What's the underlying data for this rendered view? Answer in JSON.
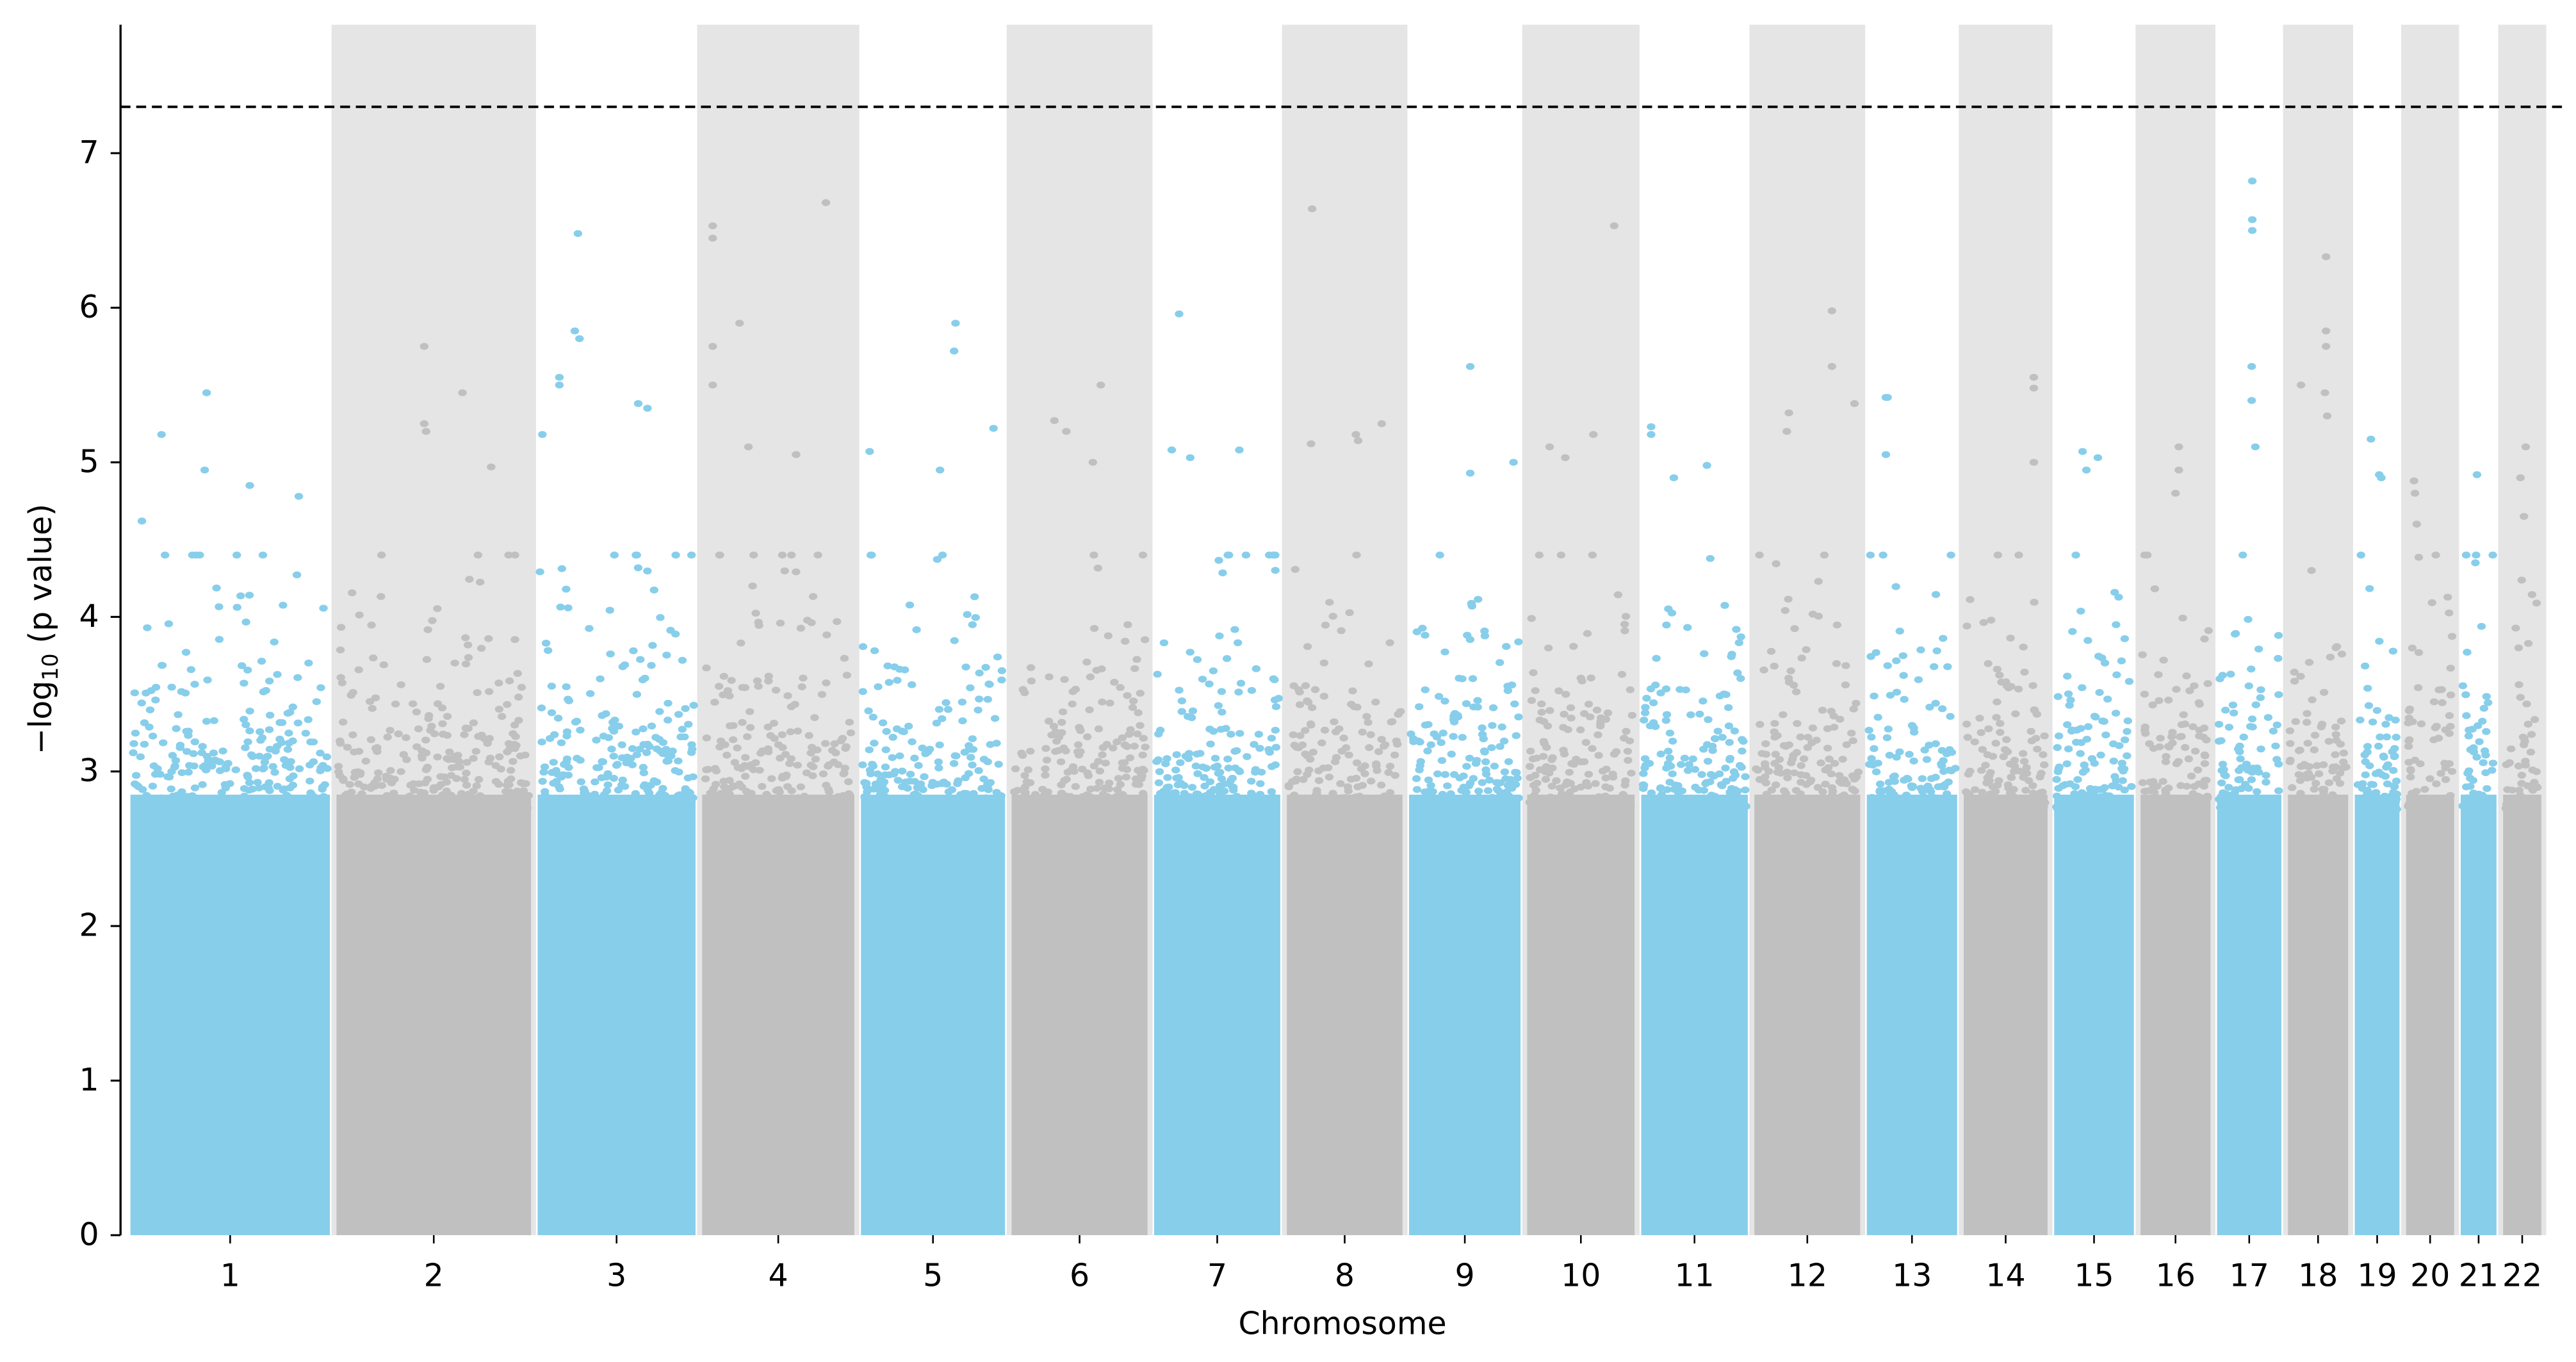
{
  "chart_data": {
    "type": "scatter",
    "subtype": "manhattan",
    "xlabel": "Chromosome",
    "ylabel": "−log10 (p value)",
    "ylim": [
      0,
      7.85
    ],
    "yticks": [
      0,
      1,
      2,
      3,
      4,
      5,
      6,
      7
    ],
    "threshold": 7.3,
    "colors": {
      "odd": "#87CEEB",
      "even": "#C0C0C0",
      "band": "#E5E5E5",
      "threshold": "#000000"
    },
    "chromosomes": [
      {
        "label": "1",
        "length_mb": 249,
        "top_hits": [
          [
            0.38,
            5.45
          ],
          [
            0.15,
            5.18
          ],
          [
            0.37,
            4.95
          ],
          [
            0.6,
            4.85
          ],
          [
            0.85,
            4.78
          ],
          [
            0.05,
            4.62
          ]
        ]
      },
      {
        "label": "2",
        "length_mb": 243,
        "top_hits": [
          [
            0.45,
            5.75
          ],
          [
            0.65,
            5.45
          ],
          [
            0.45,
            5.25
          ],
          [
            0.46,
            5.2
          ],
          [
            0.8,
            4.97
          ]
        ]
      },
      {
        "label": "3",
        "length_mb": 198,
        "top_hits": [
          [
            0.25,
            6.48
          ],
          [
            0.23,
            5.85
          ],
          [
            0.26,
            5.8
          ],
          [
            0.13,
            5.55
          ],
          [
            0.13,
            5.5
          ],
          [
            0.64,
            5.38
          ],
          [
            0.7,
            5.35
          ],
          [
            0.02,
            5.18
          ]
        ]
      },
      {
        "label": "4",
        "length_mb": 191,
        "top_hits": [
          [
            0.82,
            6.68
          ],
          [
            0.06,
            6.53
          ],
          [
            0.06,
            6.45
          ],
          [
            0.24,
            5.9
          ],
          [
            0.06,
            5.75
          ],
          [
            0.06,
            5.5
          ],
          [
            0.3,
            5.1
          ],
          [
            0.62,
            5.05
          ]
        ]
      },
      {
        "label": "5",
        "length_mb": 181,
        "top_hits": [
          [
            0.66,
            5.9
          ],
          [
            0.65,
            5.72
          ],
          [
            0.93,
            5.22
          ],
          [
            0.05,
            5.07
          ],
          [
            0.55,
            4.95
          ]
        ]
      },
      {
        "label": "6",
        "length_mb": 171,
        "top_hits": [
          [
            0.66,
            5.5
          ],
          [
            0.31,
            5.27
          ],
          [
            0.4,
            5.2
          ],
          [
            0.6,
            5.0
          ]
        ]
      },
      {
        "label": "7",
        "length_mb": 159,
        "top_hits": [
          [
            0.19,
            5.96
          ],
          [
            0.13,
            5.08
          ],
          [
            0.68,
            5.08
          ],
          [
            0.28,
            5.03
          ]
        ]
      },
      {
        "label": "8",
        "length_mb": 146,
        "top_hits": [
          [
            0.21,
            6.64
          ],
          [
            0.83,
            5.25
          ],
          [
            0.6,
            5.18
          ],
          [
            0.62,
            5.14
          ],
          [
            0.2,
            5.12
          ]
        ]
      },
      {
        "label": "9",
        "length_mb": 141,
        "top_hits": [
          [
            0.55,
            5.62
          ],
          [
            0.95,
            5.0
          ],
          [
            0.55,
            4.93
          ]
        ]
      },
      {
        "label": "10",
        "length_mb": 136,
        "top_hits": [
          [
            0.82,
            6.53
          ],
          [
            0.62,
            5.18
          ],
          [
            0.2,
            5.1
          ],
          [
            0.35,
            5.03
          ]
        ]
      },
      {
        "label": "11",
        "length_mb": 135,
        "top_hits": [
          [
            0.08,
            5.23
          ],
          [
            0.08,
            5.18
          ],
          [
            0.62,
            4.98
          ],
          [
            0.3,
            4.9
          ]
        ]
      },
      {
        "label": "12",
        "length_mb": 134,
        "top_hits": [
          [
            0.74,
            5.98
          ],
          [
            0.74,
            5.62
          ],
          [
            0.96,
            5.38
          ],
          [
            0.32,
            5.32
          ],
          [
            0.3,
            5.2
          ]
        ]
      },
      {
        "label": "13",
        "length_mb": 115,
        "top_hits": [
          [
            0.2,
            5.42
          ],
          [
            0.22,
            5.42
          ],
          [
            0.2,
            5.05
          ]
        ]
      },
      {
        "label": "14",
        "length_mb": 107,
        "top_hits": [
          [
            0.85,
            5.55
          ],
          [
            0.85,
            5.48
          ],
          [
            0.85,
            5.0
          ]
        ]
      },
      {
        "label": "15",
        "length_mb": 102,
        "top_hits": [
          [
            0.35,
            5.07
          ],
          [
            0.55,
            5.03
          ],
          [
            0.4,
            4.95
          ]
        ]
      },
      {
        "label": "16",
        "length_mb": 90,
        "top_hits": [
          [
            0.55,
            5.1
          ],
          [
            0.55,
            4.95
          ],
          [
            0.5,
            4.8
          ]
        ]
      },
      {
        "label": "17",
        "length_mb": 83,
        "top_hits": [
          [
            0.55,
            6.82
          ],
          [
            0.55,
            6.57
          ],
          [
            0.55,
            6.5
          ],
          [
            0.54,
            5.62
          ],
          [
            0.54,
            5.4
          ],
          [
            0.6,
            5.1
          ]
        ]
      },
      {
        "label": "18",
        "length_mb": 78,
        "top_hits": [
          [
            0.64,
            6.33
          ],
          [
            0.64,
            5.85
          ],
          [
            0.64,
            5.75
          ],
          [
            0.2,
            5.5
          ],
          [
            0.62,
            5.45
          ],
          [
            0.66,
            5.3
          ]
        ]
      },
      {
        "label": "19",
        "length_mb": 59,
        "top_hits": [
          [
            0.35,
            5.15
          ],
          [
            0.55,
            4.92
          ],
          [
            0.6,
            4.9
          ]
        ]
      },
      {
        "label": "20",
        "length_mb": 63,
        "top_hits": [
          [
            0.14,
            4.88
          ],
          [
            0.16,
            4.8
          ],
          [
            0.2,
            4.6
          ]
        ]
      },
      {
        "label": "21",
        "length_mb": 48,
        "top_hits": [
          [
            0.45,
            4.92
          ],
          [
            0.4,
            4.35
          ]
        ]
      },
      {
        "label": "22",
        "length_mb": 51,
        "top_hits": [
          [
            0.6,
            5.1
          ],
          [
            0.45,
            4.9
          ],
          [
            0.55,
            4.65
          ]
        ]
      }
    ]
  }
}
